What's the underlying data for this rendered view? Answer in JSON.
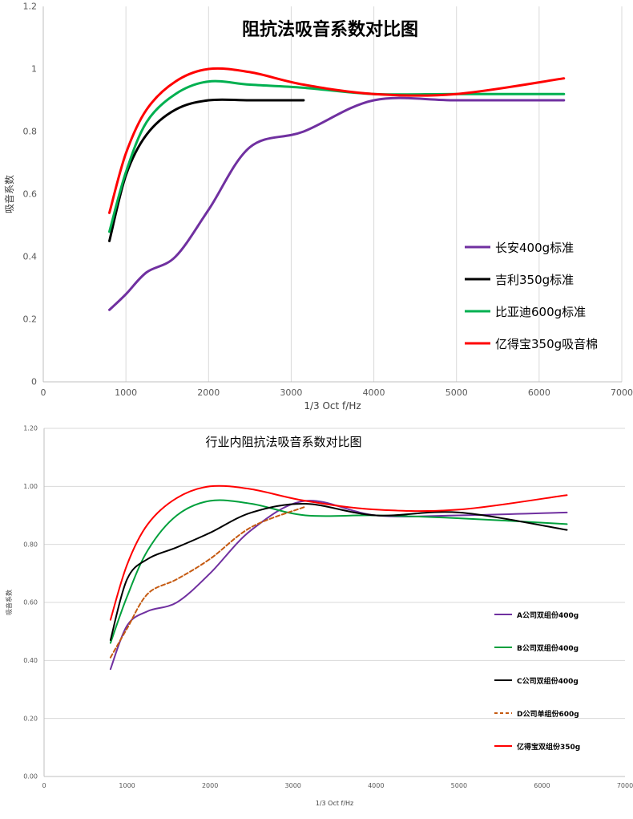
{
  "chart_data": [
    {
      "type": "line",
      "title": "阻抗法吸音系数对比图",
      "xlabel": "1/3 Oct f/Hz",
      "ylabel": "吸音系数",
      "xlim": [
        0,
        7000
      ],
      "ylim": [
        0,
        1.2
      ],
      "x_ticks": [
        "0",
        "1000",
        "2000",
        "3000",
        "4000",
        "5000",
        "6000",
        "7000"
      ],
      "y_ticks": [
        "0",
        "0.2",
        "0.4",
        "0.6",
        "0.8",
        "1",
        "1.2"
      ],
      "grid": "vertical",
      "legend": "right",
      "series": [
        {
          "name": "长安400g标准",
          "color": "#7030a0",
          "dashed": false,
          "x": [
            800,
            1000,
            1250,
            1600,
            2000,
            2500,
            3150,
            4000,
            5000,
            6300
          ],
          "y": [
            0.23,
            0.28,
            0.35,
            0.4,
            0.55,
            0.75,
            0.8,
            0.9,
            0.9,
            0.9
          ]
        },
        {
          "name": "吉利350g标准",
          "color": "#000000",
          "dashed": false,
          "x": [
            800,
            1000,
            1250,
            1600,
            2000,
            2500,
            3150
          ],
          "y": [
            0.45,
            0.66,
            0.79,
            0.87,
            0.9,
            0.9,
            0.9
          ]
        },
        {
          "name": "比亚迪600g标准",
          "color": "#00b050",
          "dashed": false,
          "x": [
            800,
            1000,
            1250,
            1600,
            2000,
            2500,
            3150,
            4000,
            5000,
            6300
          ],
          "y": [
            0.48,
            0.67,
            0.83,
            0.92,
            0.96,
            0.95,
            0.94,
            0.92,
            0.92,
            0.92
          ]
        },
        {
          "name": "亿得宝350g吸音棉",
          "color": "#ff0000",
          "dashed": false,
          "x": [
            800,
            1000,
            1250,
            1600,
            2000,
            2500,
            3150,
            4000,
            5000,
            6300
          ],
          "y": [
            0.54,
            0.73,
            0.87,
            0.96,
            1.0,
            0.99,
            0.95,
            0.92,
            0.92,
            0.97
          ]
        }
      ]
    },
    {
      "type": "line",
      "title": "行业内阻抗法吸音系数对比图",
      "xlabel": "1/3 Oct f/Hz",
      "ylabel": "吸音系数",
      "xlim": [
        0,
        7000
      ],
      "ylim": [
        0,
        1.2
      ],
      "x_ticks": [
        "0",
        "1000",
        "2000",
        "3000",
        "4000",
        "5000",
        "6000",
        "7000"
      ],
      "y_ticks": [
        "0.00",
        "0.20",
        "0.40",
        "0.60",
        "0.80",
        "1.00",
        "1.20"
      ],
      "grid": "horizontal",
      "legend": "right",
      "series": [
        {
          "name": "A公司双组份400g",
          "color": "#7030a0",
          "dashed": false,
          "x": [
            800,
            1000,
            1250,
            1600,
            2000,
            2500,
            3150,
            4000,
            5000,
            6300
          ],
          "y": [
            0.37,
            0.52,
            0.57,
            0.6,
            0.7,
            0.85,
            0.95,
            0.9,
            0.9,
            0.91
          ]
        },
        {
          "name": "B公司双组份400g",
          "color": "#00a03c",
          "dashed": false,
          "x": [
            800,
            1000,
            1250,
            1600,
            2000,
            2500,
            3150,
            4000,
            5000,
            6300
          ],
          "y": [
            0.46,
            0.62,
            0.78,
            0.9,
            0.95,
            0.94,
            0.9,
            0.9,
            0.89,
            0.87
          ]
        },
        {
          "name": "C公司双组份400g",
          "color": "#000000",
          "dashed": false,
          "x": [
            800,
            1000,
            1250,
            1600,
            2000,
            2500,
            3150,
            4000,
            5000,
            6300
          ],
          "y": [
            0.47,
            0.68,
            0.75,
            0.79,
            0.84,
            0.91,
            0.94,
            0.9,
            0.91,
            0.85
          ]
        },
        {
          "name": "D公司单组份600g",
          "color": "#c55a11",
          "dashed": true,
          "x": [
            800,
            1000,
            1250,
            1600,
            2000,
            2500,
            3150
          ],
          "y": [
            0.41,
            0.51,
            0.63,
            0.68,
            0.75,
            0.86,
            0.93
          ]
        },
        {
          "name": "亿得宝双组份350g",
          "color": "#ff0000",
          "dashed": false,
          "x": [
            800,
            1000,
            1250,
            1600,
            2000,
            2500,
            3150,
            4000,
            5000,
            6300
          ],
          "y": [
            0.54,
            0.73,
            0.87,
            0.96,
            1.0,
            0.99,
            0.95,
            0.92,
            0.92,
            0.97
          ]
        }
      ]
    }
  ]
}
